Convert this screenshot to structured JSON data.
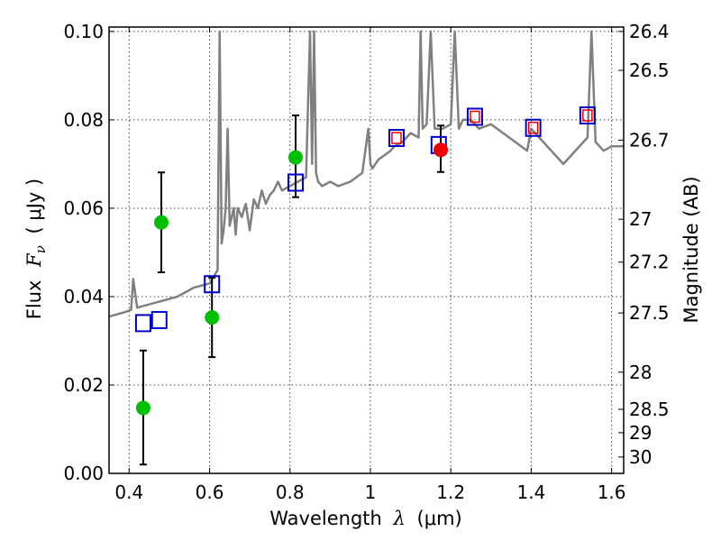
{
  "chart_data": {
    "type": "scatter",
    "xlabel": "Wavelength",
    "xlabel_symbol": "λ",
    "xlabel_unit": "(μm)",
    "ylabel": "Flux",
    "ylabel_symbol": "F",
    "ylabel_subscript": "ν",
    "ylabel_unit": "( μJy )",
    "y2label": "Magnitude (AB)",
    "xlim": [
      0.35,
      1.63
    ],
    "ylim": [
      0.0,
      0.101
    ],
    "grid": true,
    "x_ticks": [
      {
        "value": 0.4,
        "label": "0.4"
      },
      {
        "value": 0.6,
        "label": "0.6"
      },
      {
        "value": 0.8,
        "label": "0.8"
      },
      {
        "value": 1.0,
        "label": "1"
      },
      {
        "value": 1.2,
        "label": "1.2"
      },
      {
        "value": 1.4,
        "label": "1.4"
      },
      {
        "value": 1.6,
        "label": "1.6"
      }
    ],
    "y_ticks": [
      {
        "value": 0.0,
        "label": "0.00"
      },
      {
        "value": 0.02,
        "label": "0.02"
      },
      {
        "value": 0.04,
        "label": "0.04"
      },
      {
        "value": 0.06,
        "label": "0.06"
      },
      {
        "value": 0.08,
        "label": "0.08"
      },
      {
        "value": 0.1,
        "label": "0.10"
      }
    ],
    "mag_ticks": [
      {
        "flux": 0.1,
        "label": "26.4"
      },
      {
        "flux": 0.0912,
        "label": "26.5"
      },
      {
        "flux": 0.0754,
        "label": "26.7"
      },
      {
        "flux": 0.0575,
        "label": "27"
      },
      {
        "flux": 0.0478,
        "label": "27.2"
      },
      {
        "flux": 0.0363,
        "label": "27.5"
      },
      {
        "flux": 0.0229,
        "label": "28"
      },
      {
        "flux": 0.0145,
        "label": "28.5"
      },
      {
        "flux": 0.0092,
        "label": "29"
      },
      {
        "flux": 0.0037,
        "label": "30"
      }
    ],
    "series": [
      {
        "name": "model spectrum",
        "kind": "line",
        "color": "#808080",
        "x": [
          0.35,
          0.37,
          0.39,
          0.405,
          0.41,
          0.42,
          0.44,
          0.46,
          0.48,
          0.5,
          0.52,
          0.54,
          0.56,
          0.58,
          0.6,
          0.61,
          0.62,
          0.625,
          0.63,
          0.635,
          0.64,
          0.645,
          0.65,
          0.655,
          0.66,
          0.665,
          0.67,
          0.68,
          0.69,
          0.7,
          0.71,
          0.72,
          0.73,
          0.74,
          0.75,
          0.76,
          0.77,
          0.78,
          0.8,
          0.82,
          0.84,
          0.85,
          0.855,
          0.86,
          0.865,
          0.87,
          0.88,
          0.9,
          0.92,
          0.95,
          0.98,
          0.995,
          1.0,
          1.005,
          1.02,
          1.05,
          1.06,
          1.08,
          1.1,
          1.12,
          1.125,
          1.13,
          1.14,
          1.15,
          1.16,
          1.18,
          1.2,
          1.21,
          1.22,
          1.23,
          1.25,
          1.27,
          1.3,
          1.33,
          1.36,
          1.39,
          1.4,
          1.42,
          1.44,
          1.46,
          1.48,
          1.5,
          1.52,
          1.54,
          1.55,
          1.56,
          1.58,
          1.6,
          1.63
        ],
        "y": [
          0.0355,
          0.036,
          0.0365,
          0.037,
          0.044,
          0.0375,
          0.038,
          0.0385,
          0.039,
          0.0395,
          0.04,
          0.041,
          0.042,
          0.0425,
          0.043,
          0.0445,
          0.046,
          0.1,
          0.052,
          0.055,
          0.06,
          0.078,
          0.056,
          0.058,
          0.06,
          0.054,
          0.06,
          0.058,
          0.061,
          0.055,
          0.062,
          0.06,
          0.064,
          0.061,
          0.063,
          0.064,
          0.066,
          0.064,
          0.065,
          0.066,
          0.067,
          0.1,
          0.07,
          0.1,
          0.068,
          0.066,
          0.065,
          0.066,
          0.065,
          0.066,
          0.068,
          0.078,
          0.07,
          0.069,
          0.071,
          0.073,
          0.074,
          0.075,
          0.077,
          0.076,
          0.1,
          0.078,
          0.079,
          0.1,
          0.078,
          0.078,
          0.079,
          0.1,
          0.078,
          0.08,
          0.08,
          0.078,
          0.079,
          0.077,
          0.075,
          0.073,
          0.078,
          0.076,
          0.074,
          0.072,
          0.07,
          0.072,
          0.074,
          0.076,
          0.1,
          0.075,
          0.073,
          0.074,
          0.074
        ]
      },
      {
        "name": "model fluxes",
        "kind": "open-square",
        "color": "#0000cc",
        "x": [
          0.435,
          0.475,
          0.606,
          0.814,
          1.065,
          1.17,
          1.26,
          1.405,
          1.54
        ],
        "y": [
          0.034,
          0.0347,
          0.0428,
          0.0658,
          0.0759,
          0.0743,
          0.0807,
          0.0782,
          0.081
        ]
      },
      {
        "name": "observed photometry",
        "kind": "filled-circle",
        "color": "#00c000",
        "x": [
          0.435,
          0.48,
          0.606,
          0.814
        ],
        "y": [
          0.0148,
          0.0568,
          0.0353,
          0.0715
        ],
        "err_low": [
          0.0128,
          0.0113,
          0.009,
          0.009
        ],
        "err_high": [
          0.013,
          0.0113,
          0.009,
          0.0095
        ]
      },
      {
        "name": "observed photometry (J)",
        "kind": "filled-circle",
        "color": "#ee0000",
        "x": [
          1.175
        ],
        "y": [
          0.0732
        ],
        "err_low": [
          0.005
        ],
        "err_high": [
          0.0055
        ]
      },
      {
        "name": "inner squares",
        "kind": "open-square-small",
        "color": "#ee0000",
        "x": [
          1.065,
          1.26,
          1.405,
          1.54
        ],
        "y": [
          0.0759,
          0.0807,
          0.0782,
          0.081
        ]
      }
    ]
  }
}
